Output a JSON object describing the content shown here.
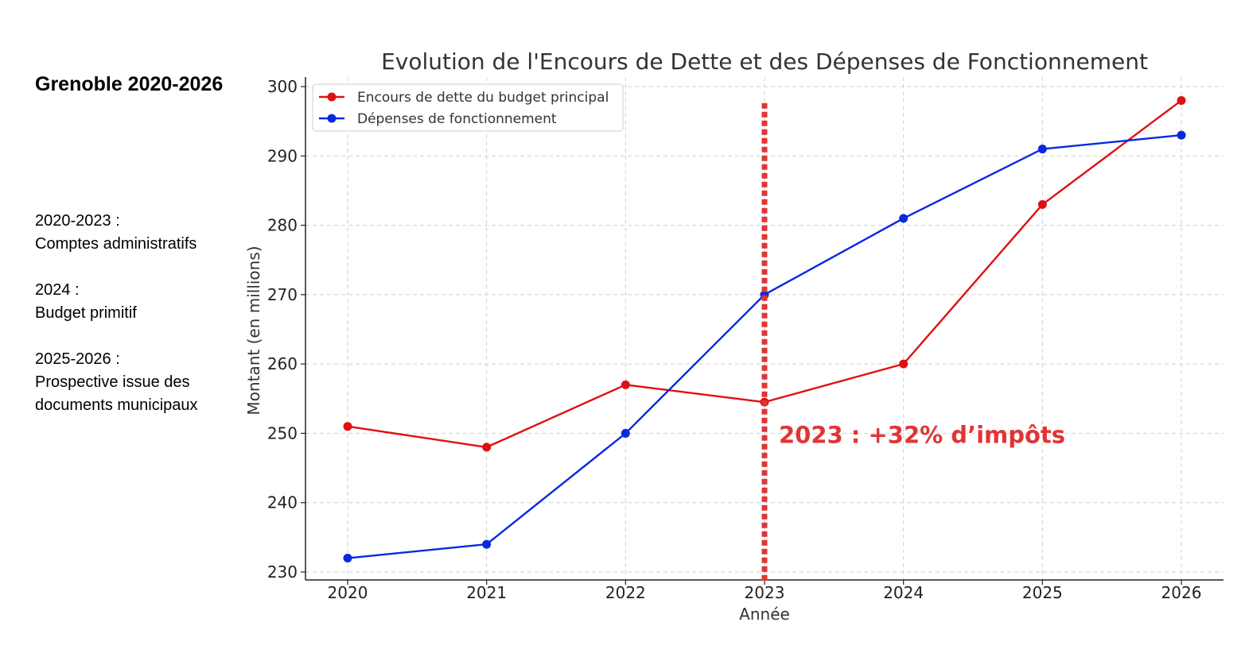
{
  "sidebar": {
    "title": "Grenoble 2020-2026",
    "notes": [
      {
        "heading": "2020-2023 :",
        "text": [
          "Comptes administratifs"
        ]
      },
      {
        "heading": "2024 :",
        "text": [
          "Budget primitif"
        ]
      },
      {
        "heading": "2025-2026 :",
        "text": [
          "Prospective issue des",
          "documents municipaux"
        ]
      }
    ]
  },
  "chart_data": {
    "type": "line",
    "title": "Evolution de l'Encours de Dette et des Dépenses de Fonctionnement",
    "xlabel": "Année",
    "ylabel": "Montant (en millions)",
    "x": [
      2020,
      2021,
      2022,
      2023,
      2024,
      2025,
      2026
    ],
    "ylim": [
      229,
      301
    ],
    "yticks": [
      230,
      240,
      250,
      260,
      270,
      280,
      290,
      300
    ],
    "grid": true,
    "legend_position": "top-left",
    "series": [
      {
        "name": "Encours de dette du budget principal",
        "color": "#e01010",
        "values": [
          251,
          248,
          257,
          254.5,
          260,
          283,
          298
        ]
      },
      {
        "name": "Dépenses de fonctionnement",
        "color": "#0a28e0",
        "values": [
          232,
          234,
          250,
          270,
          281,
          291,
          293
        ]
      }
    ],
    "annotations": [
      {
        "type": "vline",
        "x": 2023,
        "color": "#e03535",
        "style": "dotted",
        "y_from": 229,
        "y_to": 298
      },
      {
        "type": "text",
        "x": 2023,
        "y": 250,
        "text": "2023 : +32% d’impôts",
        "color": "#e03535"
      }
    ]
  }
}
